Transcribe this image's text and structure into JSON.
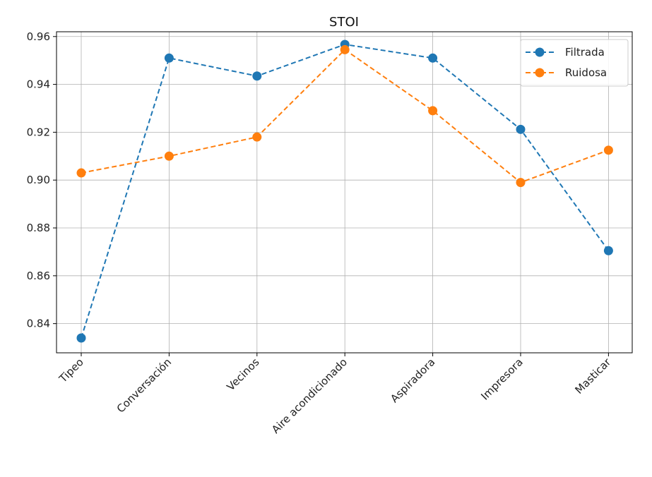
{
  "chart_data": {
    "type": "line",
    "title": "STOI",
    "xlabel": "",
    "ylabel": "",
    "categories": [
      "Tipeo",
      "Conversación",
      "Vecinos",
      "Aire acondicionado",
      "Aspiradora",
      "Impresora",
      "Masticar"
    ],
    "ylim": [
      0.8278,
      0.962
    ],
    "yticks": [
      "0.84",
      "0.86",
      "0.88",
      "0.90",
      "0.92",
      "0.94",
      "0.96"
    ],
    "grid": true,
    "legend_position": "top-right",
    "series": [
      {
        "name": "Filtrada",
        "color": "#1f77b4",
        "linestyle": "dashed",
        "marker": "circle",
        "values": [
          0.834,
          0.951,
          0.9435,
          0.9567,
          0.951,
          0.9212,
          0.8705
        ]
      },
      {
        "name": "Ruidosa",
        "color": "#ff7f0e",
        "linestyle": "dashed",
        "marker": "circle",
        "values": [
          0.903,
          0.91,
          0.918,
          0.9545,
          0.929,
          0.899,
          0.9125
        ]
      }
    ]
  }
}
